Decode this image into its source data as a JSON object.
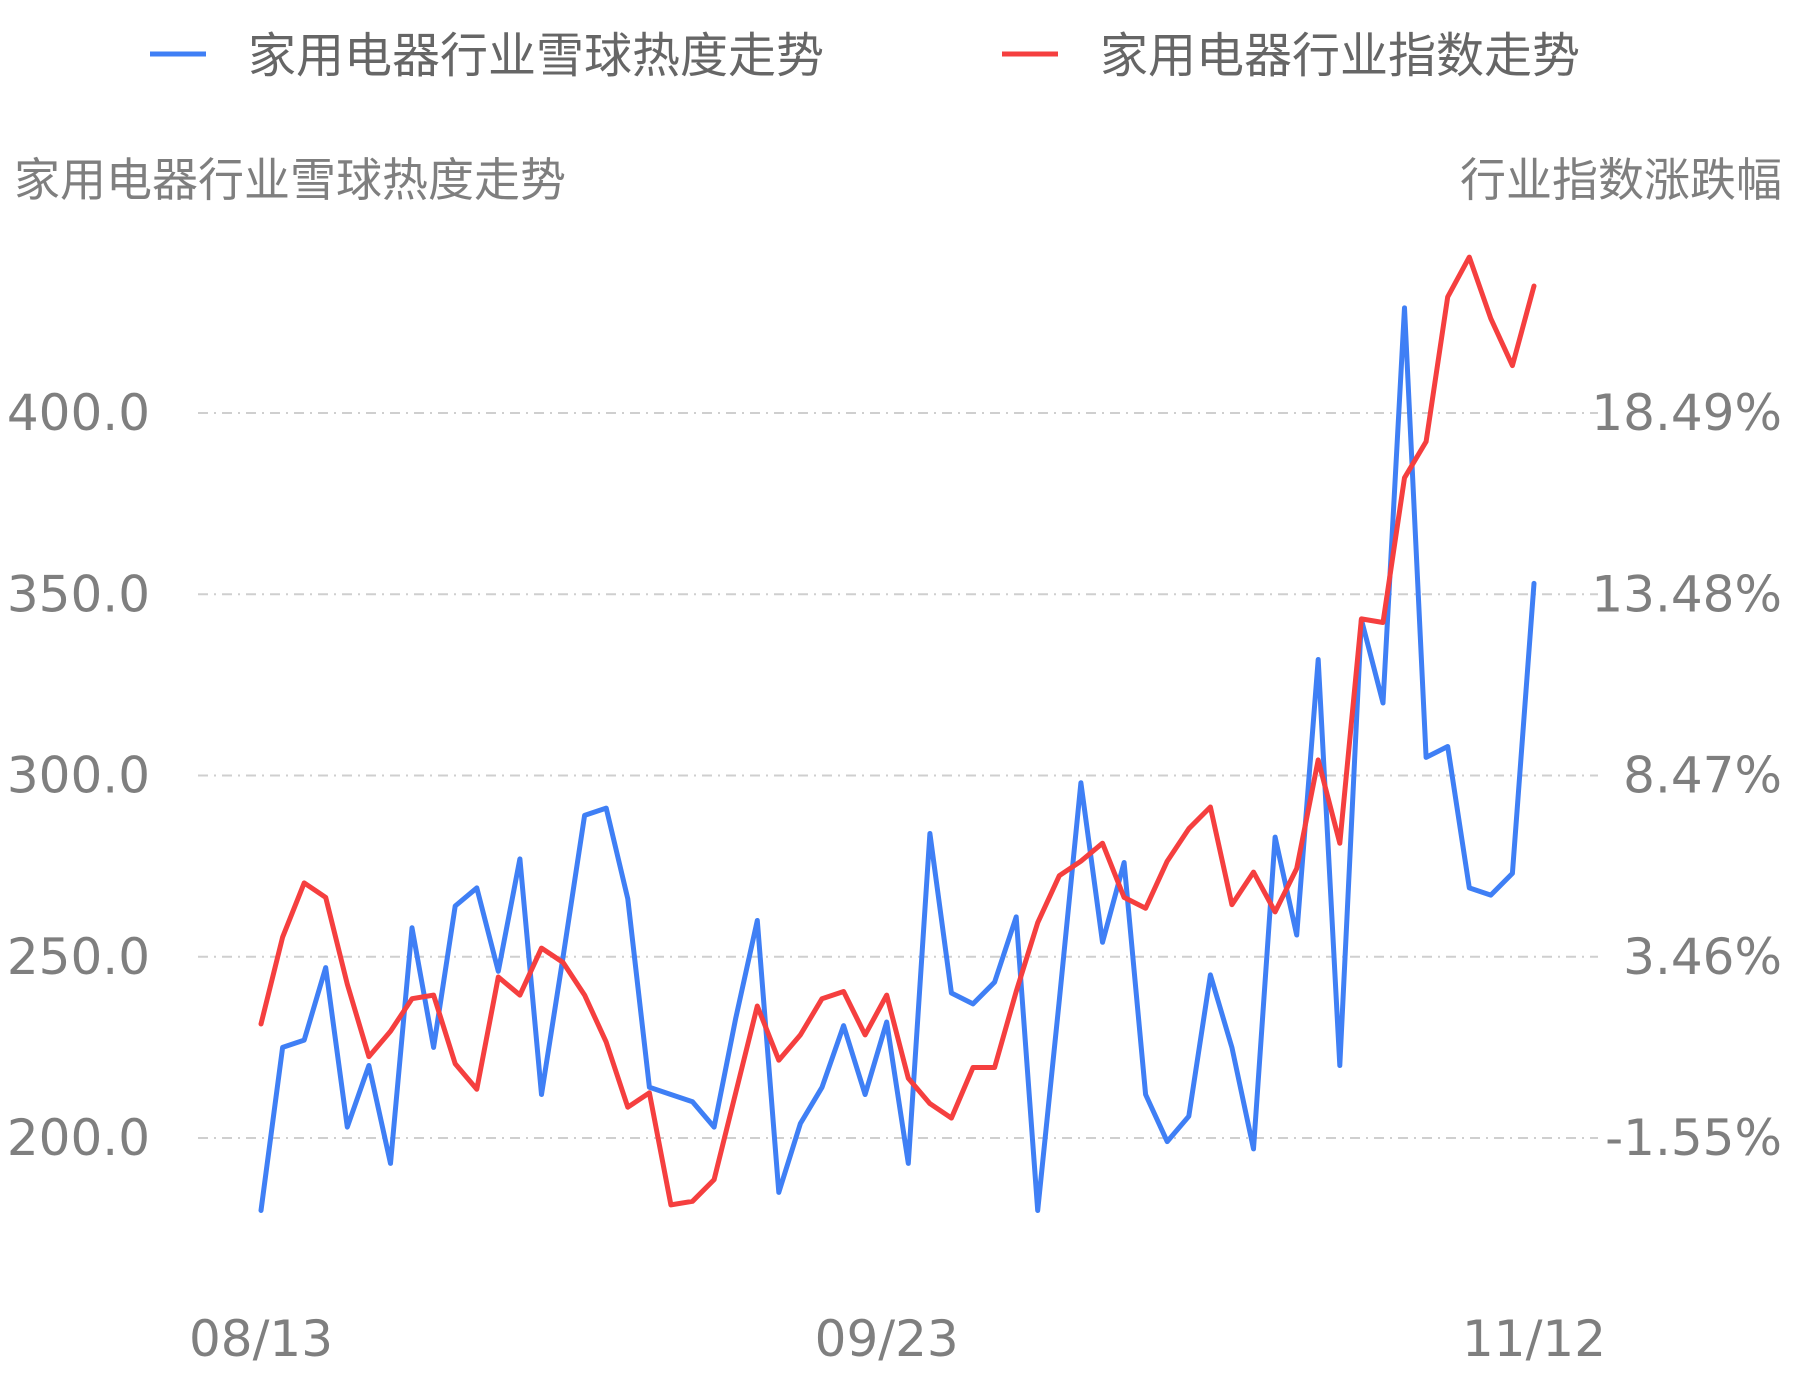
{
  "chart_data": {
    "type": "line",
    "legend": {
      "placement": "top",
      "entries": [
        {
          "label": "家用电器行业雪球热度走势",
          "color": "#3f7ff5"
        },
        {
          "label": "家用电器行业指数走势",
          "color": "#f53f3f"
        }
      ]
    },
    "left_axis": {
      "title": "家用电器行业雪球热度走势",
      "ticks": [
        {
          "value": 200,
          "label": "200.0"
        },
        {
          "value": 250,
          "label": "250.0"
        },
        {
          "value": 300,
          "label": "300.0"
        },
        {
          "value": 350,
          "label": "350.0"
        },
        {
          "value": 400,
          "label": "400.0"
        }
      ],
      "range": [
        170,
        450
      ]
    },
    "right_axis": {
      "title": "行业指数涨跌幅",
      "ticks": [
        {
          "value": -1.55,
          "label": "-1.55%"
        },
        {
          "value": 3.46,
          "label": "3.46%"
        },
        {
          "value": 8.47,
          "label": "8.47%"
        },
        {
          "value": 13.48,
          "label": "13.48%"
        },
        {
          "value": 18.49,
          "label": "18.49%"
        }
      ],
      "range": [
        -4.556,
        23.5
      ]
    },
    "x_ticks": [
      {
        "index": 0,
        "label": "08/13"
      },
      {
        "index": 29,
        "label": "09/23"
      },
      {
        "index": 59,
        "label": "11/12"
      }
    ],
    "grid": true,
    "series": [
      {
        "name": "家用电器行业雪球热度走势",
        "axis": "left",
        "color": "#3f7ff5",
        "values": [
          180,
          225,
          227,
          247,
          203,
          220,
          193,
          258,
          225,
          264,
          269,
          246,
          277,
          212,
          250,
          289,
          291,
          266,
          214,
          212,
          210,
          203,
          233,
          260,
          185,
          204,
          214,
          231,
          212,
          232,
          193,
          284,
          240,
          237,
          243,
          261,
          180,
          238,
          298,
          254,
          276,
          212,
          199,
          206,
          245,
          225,
          197,
          283,
          256,
          332,
          220,
          343,
          320,
          429,
          305,
          308,
          269,
          267,
          273,
          353
        ]
      },
      {
        "name": "家用电器行业指数走势",
        "axis": "right",
        "color": "#f53f3f",
        "values": [
          1.6,
          4.0,
          5.5,
          5.1,
          2.7,
          0.7,
          1.4,
          2.3,
          2.4,
          0.5,
          -0.2,
          2.9,
          2.4,
          3.7,
          3.3,
          2.4,
          1.1,
          -0.7,
          -0.3,
          -3.4,
          -3.3,
          -2.7,
          -0.3,
          2.1,
          0.6,
          1.3,
          2.3,
          2.5,
          1.3,
          2.4,
          0.1,
          -0.6,
          -1.0,
          0.4,
          0.4,
          2.5,
          4.4,
          5.7,
          6.1,
          6.6,
          5.1,
          4.8,
          6.1,
          7.0,
          7.6,
          4.9,
          5.8,
          4.7,
          5.9,
          8.9,
          6.6,
          12.8,
          12.7,
          16.7,
          17.7,
          21.7,
          22.8,
          21.1,
          19.8,
          22.0
        ]
      }
    ]
  }
}
